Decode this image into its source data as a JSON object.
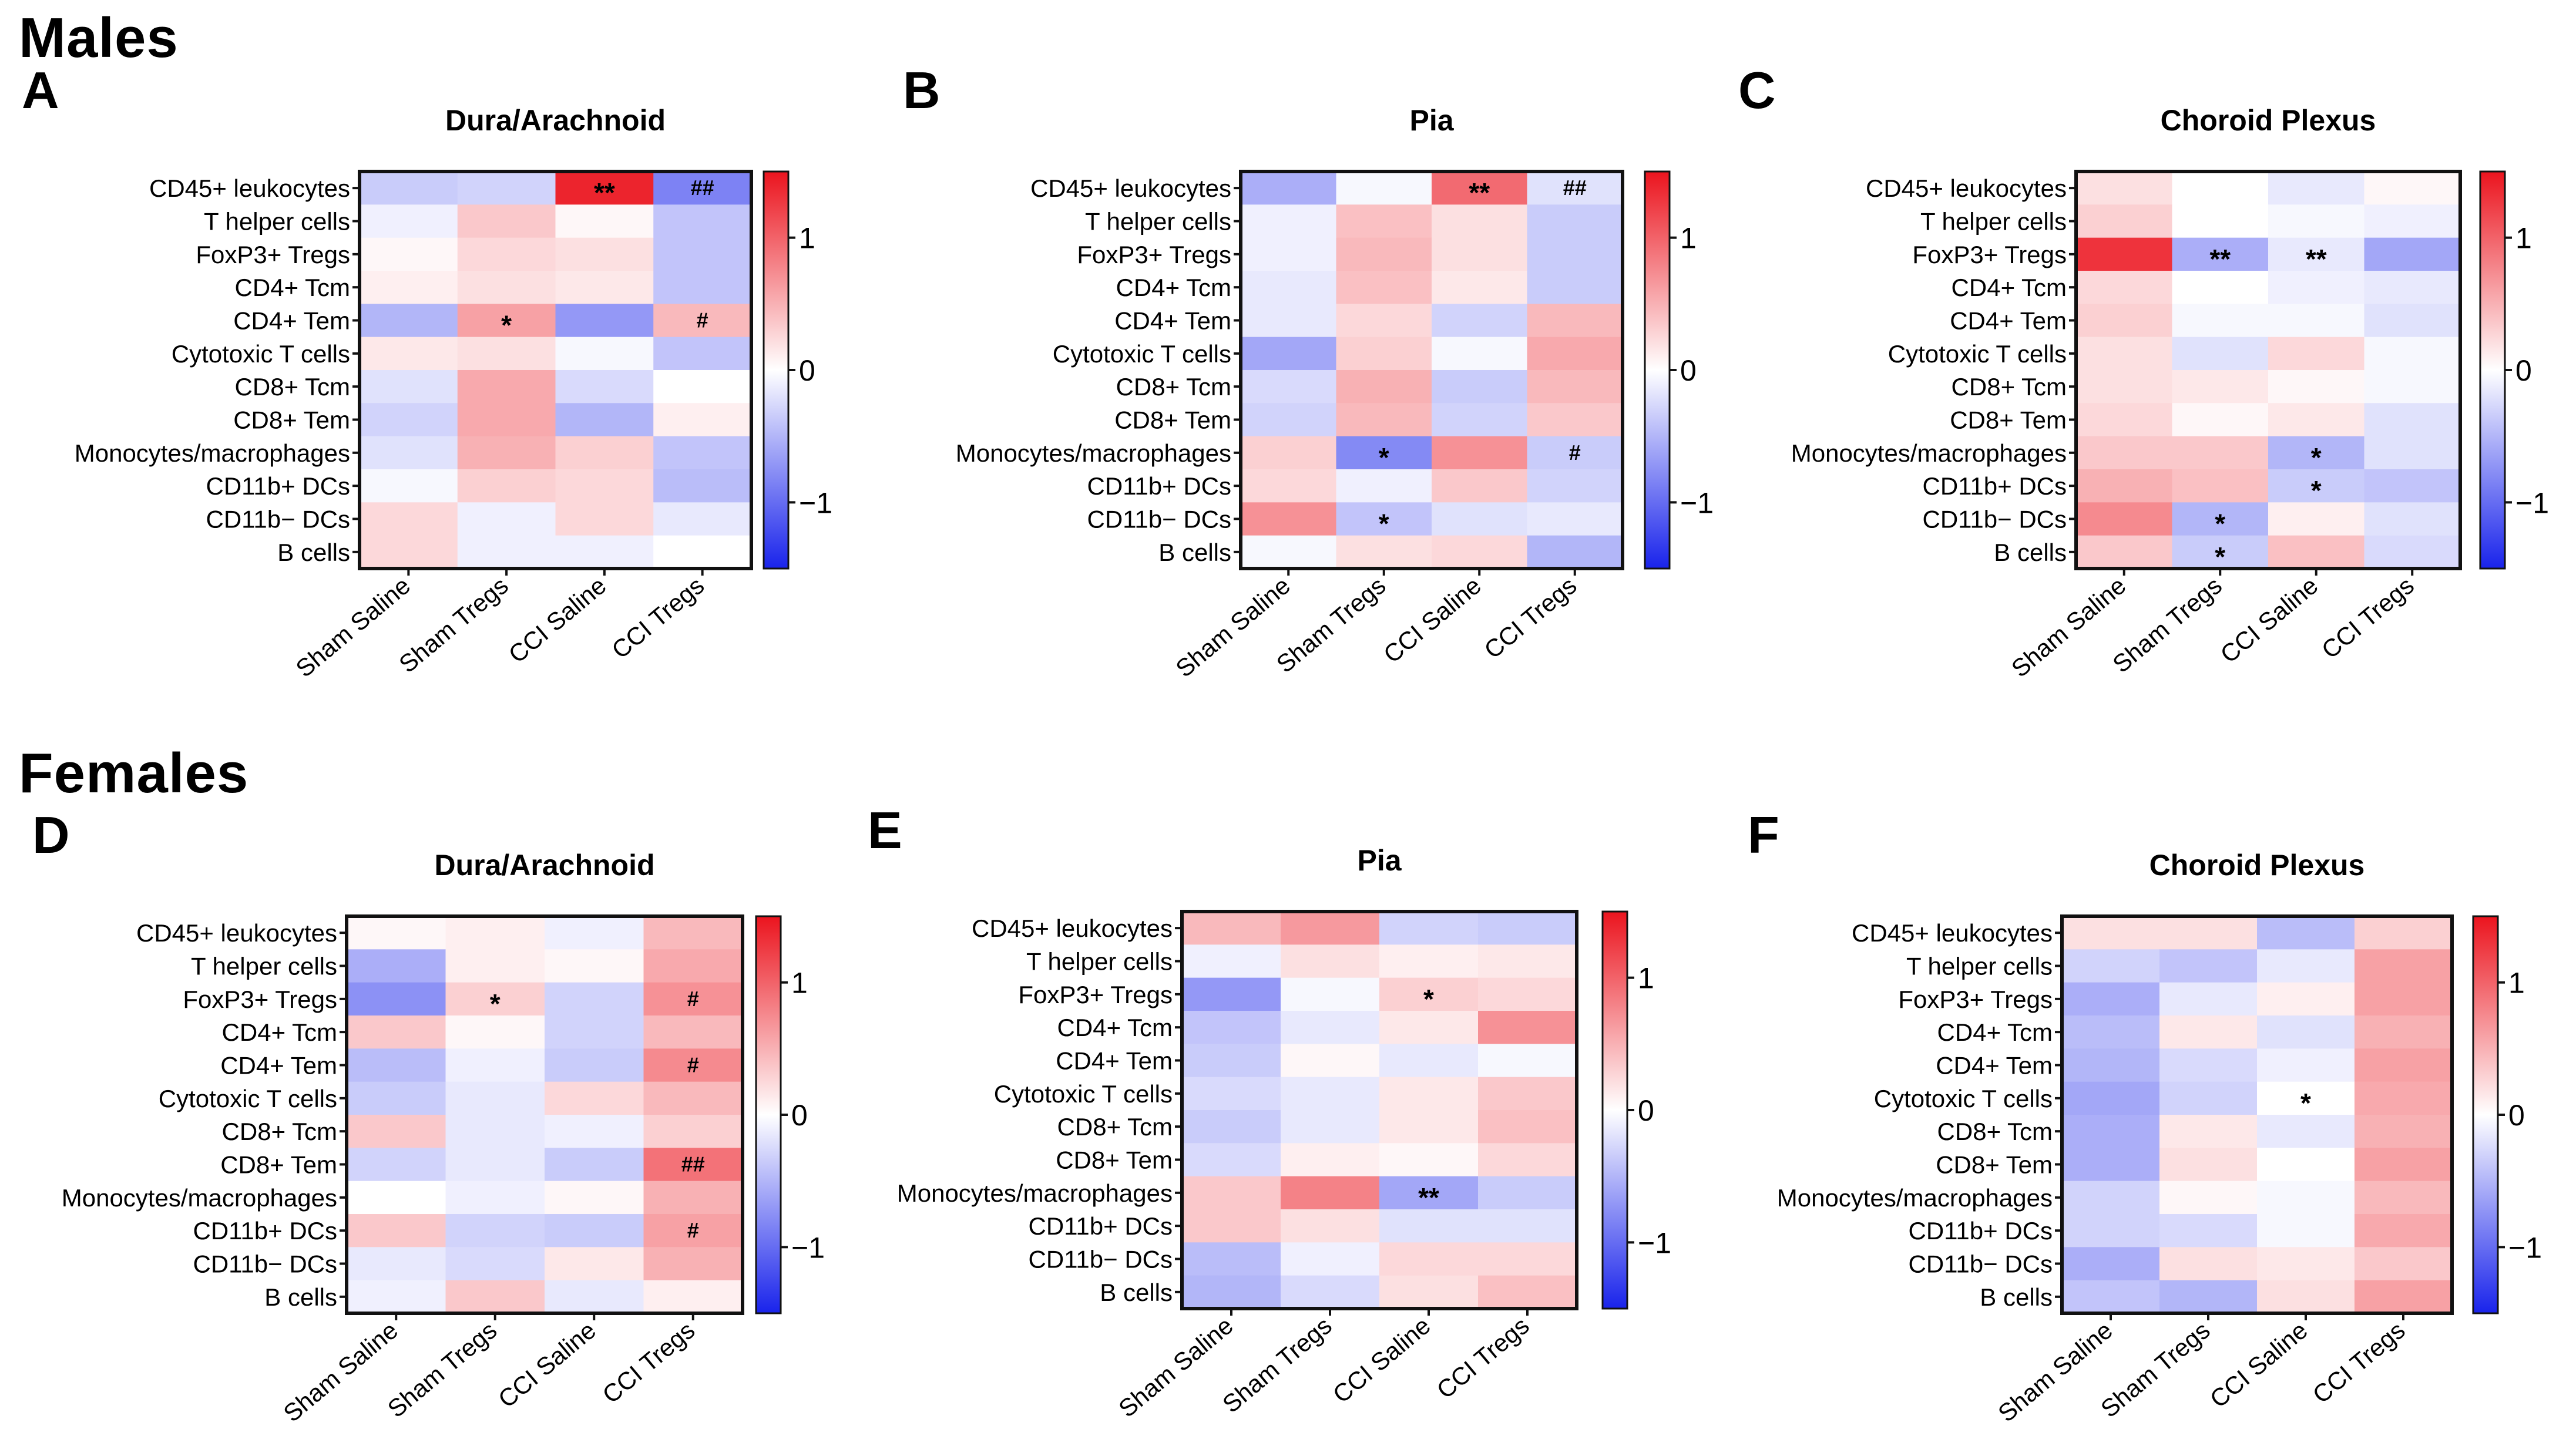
{
  "figure": {
    "males_title": "Males",
    "females_title": "Females"
  },
  "chart_data": [
    {
      "type": "heatmap",
      "panel": "A",
      "title": "Dura/Arachnoid",
      "rows": [
        "CD45+ leukocytes",
        "T helper cells",
        "FoxP3+ Tregs",
        "CD4+ Tcm",
        "CD4+ Tem",
        "Cytotoxic T cells",
        "CD8+ Tcm",
        "CD8+ Tem",
        "Monocytes/macrophages",
        "CD11b+ DCs",
        "CD11b− DCs",
        "B cells"
      ],
      "columns": [
        "Sham Saline",
        "Sham Tregs",
        "CCI Saline",
        "CCI Tregs"
      ],
      "values": [
        [
          -0.35,
          -0.3,
          1.4,
          -0.85
        ],
        [
          -0.1,
          0.35,
          0.05,
          -0.4
        ],
        [
          0.05,
          0.25,
          0.2,
          -0.4
        ],
        [
          0.1,
          0.2,
          0.15,
          -0.4
        ],
        [
          -0.5,
          0.6,
          -0.7,
          0.45
        ],
        [
          0.15,
          0.2,
          -0.05,
          -0.4
        ],
        [
          -0.2,
          0.55,
          -0.25,
          0.0
        ],
        [
          -0.3,
          0.55,
          -0.5,
          0.1
        ],
        [
          -0.2,
          0.5,
          0.3,
          -0.4
        ],
        [
          -0.05,
          0.3,
          0.25,
          -0.45
        ],
        [
          0.25,
          -0.1,
          0.25,
          -0.15
        ],
        [
          0.25,
          -0.1,
          -0.1,
          0.0
        ]
      ],
      "annotations": [
        [
          "",
          "",
          "**",
          "##"
        ],
        [
          "",
          "",
          "",
          ""
        ],
        [
          "",
          "",
          "",
          ""
        ],
        [
          "",
          "",
          "",
          ""
        ],
        [
          "",
          "*",
          "",
          "#"
        ],
        [
          "",
          "",
          "",
          ""
        ],
        [
          "",
          "",
          "",
          ""
        ],
        [
          "",
          "",
          "",
          ""
        ],
        [
          "",
          "",
          "",
          ""
        ],
        [
          "",
          "",
          "",
          ""
        ],
        [
          "",
          "",
          "",
          ""
        ],
        [
          "",
          "",
          "",
          ""
        ]
      ],
      "colorbar": {
        "min": -1.5,
        "max": 1.5,
        "ticks": [
          1,
          0,
          -1
        ],
        "tick_labels": [
          "1",
          "0",
          "−1"
        ]
      }
    },
    {
      "type": "heatmap",
      "panel": "B",
      "title": "Pia",
      "rows": [
        "CD45+ leukocytes",
        "T helper cells",
        "FoxP3+ Tregs",
        "CD4+ Tcm",
        "CD4+ Tem",
        "Cytotoxic T cells",
        "CD8+ Tcm",
        "CD8+ Tem",
        "Monocytes/macrophages",
        "CD11b+ DCs",
        "CD11b− DCs",
        "B cells"
      ],
      "columns": [
        "Sham Saline",
        "Sham Tregs",
        "CCI Saline",
        "CCI Tregs"
      ],
      "values": [
        [
          -0.55,
          -0.05,
          0.95,
          -0.2
        ],
        [
          -0.1,
          0.4,
          0.2,
          -0.35
        ],
        [
          -0.1,
          0.45,
          0.2,
          -0.35
        ],
        [
          -0.15,
          0.4,
          0.15,
          -0.35
        ],
        [
          -0.15,
          0.25,
          -0.3,
          0.45
        ],
        [
          -0.6,
          0.3,
          -0.05,
          0.55
        ],
        [
          -0.25,
          0.5,
          -0.35,
          0.45
        ],
        [
          -0.3,
          0.45,
          -0.3,
          0.35
        ],
        [
          0.3,
          -0.8,
          0.7,
          -0.35
        ],
        [
          0.25,
          -0.1,
          0.35,
          -0.3
        ],
        [
          0.7,
          -0.4,
          -0.2,
          -0.15
        ],
        [
          -0.05,
          0.2,
          0.25,
          -0.5
        ]
      ],
      "annotations": [
        [
          "",
          "",
          "**",
          "##"
        ],
        [
          "",
          "",
          "",
          ""
        ],
        [
          "",
          "",
          "",
          ""
        ],
        [
          "",
          "",
          "",
          ""
        ],
        [
          "",
          "",
          "",
          ""
        ],
        [
          "",
          "",
          "",
          ""
        ],
        [
          "",
          "",
          "",
          ""
        ],
        [
          "",
          "",
          "",
          ""
        ],
        [
          "",
          "*",
          "",
          "#"
        ],
        [
          "",
          "",
          "",
          ""
        ],
        [
          "",
          "*",
          "",
          ""
        ],
        [
          "",
          "",
          "",
          ""
        ]
      ],
      "colorbar": {
        "min": -1.5,
        "max": 1.5,
        "ticks": [
          1,
          0,
          -1
        ],
        "tick_labels": [
          "1",
          "0",
          "−1"
        ]
      }
    },
    {
      "type": "heatmap",
      "panel": "C",
      "title": "Choroid Plexus",
      "rows": [
        "CD45+ leukocytes",
        "T helper cells",
        "FoxP3+ Tregs",
        "CD4+ Tcm",
        "CD4+ Tem",
        "Cytotoxic T cells",
        "CD8+ Tcm",
        "CD8+ Tem",
        "Monocytes/macrophages",
        "CD11b+ DCs",
        "CD11b− DCs",
        "B cells"
      ],
      "columns": [
        "Sham Saline",
        "Sham Tregs",
        "CCI Saline",
        "CCI Tregs"
      ],
      "values": [
        [
          0.2,
          0.0,
          -0.15,
          0.05
        ],
        [
          0.3,
          0.0,
          -0.05,
          -0.1
        ],
        [
          1.3,
          -0.55,
          -0.15,
          -0.6
        ],
        [
          0.25,
          0.0,
          -0.1,
          -0.15
        ],
        [
          0.3,
          -0.05,
          -0.05,
          -0.2
        ],
        [
          0.2,
          -0.2,
          0.25,
          -0.05
        ],
        [
          0.2,
          0.15,
          0.05,
          -0.05
        ],
        [
          0.25,
          0.05,
          0.15,
          -0.2
        ],
        [
          0.35,
          0.35,
          -0.5,
          -0.2
        ],
        [
          0.5,
          0.4,
          -0.35,
          -0.4
        ],
        [
          0.75,
          -0.5,
          0.1,
          -0.2
        ],
        [
          0.35,
          -0.35,
          0.4,
          -0.25
        ]
      ],
      "annotations": [
        [
          "",
          "",
          "",
          ""
        ],
        [
          "",
          "",
          "",
          ""
        ],
        [
          "",
          "**",
          "**",
          ""
        ],
        [
          "",
          "",
          "",
          ""
        ],
        [
          "",
          "",
          "",
          ""
        ],
        [
          "",
          "",
          "",
          ""
        ],
        [
          "",
          "",
          "",
          ""
        ],
        [
          "",
          "",
          "",
          ""
        ],
        [
          "",
          "",
          "*",
          ""
        ],
        [
          "",
          "",
          "*",
          ""
        ],
        [
          "",
          "*",
          "",
          ""
        ],
        [
          "",
          "*",
          "",
          ""
        ]
      ],
      "colorbar": {
        "min": -1.5,
        "max": 1.5,
        "ticks": [
          1,
          0,
          -1
        ],
        "tick_labels": [
          "1",
          "0",
          "−1"
        ]
      }
    },
    {
      "type": "heatmap",
      "panel": "D",
      "title": "Dura/Arachnoid",
      "rows": [
        "CD45+ leukocytes",
        "T helper cells",
        "FoxP3+ Tregs",
        "CD4+ Tcm",
        "CD4+ Tem",
        "Cytotoxic T cells",
        "CD8+ Tcm",
        "CD8+ Tem",
        "Monocytes/macrophages",
        "CD11b+ DCs",
        "CD11b− DCs",
        "B cells"
      ],
      "columns": [
        "Sham Saline",
        "Sham Tregs",
        "CCI Saline",
        "CCI Tregs"
      ],
      "values": [
        [
          0.05,
          0.1,
          -0.1,
          0.45
        ],
        [
          -0.55,
          0.1,
          0.05,
          0.55
        ],
        [
          -0.75,
          0.3,
          -0.3,
          0.7
        ],
        [
          0.35,
          0.05,
          -0.3,
          0.45
        ],
        [
          -0.45,
          -0.1,
          -0.35,
          0.75
        ],
        [
          -0.35,
          -0.15,
          0.25,
          0.45
        ],
        [
          0.35,
          -0.15,
          -0.1,
          0.3
        ],
        [
          -0.3,
          -0.15,
          -0.35,
          0.9
        ],
        [
          0.0,
          -0.1,
          0.05,
          0.5
        ],
        [
          0.35,
          -0.3,
          -0.35,
          0.6
        ],
        [
          -0.15,
          -0.25,
          0.15,
          0.5
        ],
        [
          -0.1,
          0.35,
          -0.15,
          0.1
        ]
      ],
      "annotations": [
        [
          "",
          "",
          "",
          ""
        ],
        [
          "",
          "",
          "",
          ""
        ],
        [
          "",
          "*",
          "",
          "#"
        ],
        [
          "",
          "",
          "",
          ""
        ],
        [
          "",
          "",
          "",
          "#"
        ],
        [
          "",
          "",
          "",
          ""
        ],
        [
          "",
          "",
          "",
          ""
        ],
        [
          "",
          "",
          "",
          "##"
        ],
        [
          "",
          "",
          "",
          ""
        ],
        [
          "",
          "",
          "",
          "#"
        ],
        [
          "",
          "",
          "",
          ""
        ],
        [
          "",
          "",
          "",
          ""
        ]
      ],
      "colorbar": {
        "min": -1.5,
        "max": 1.5,
        "ticks": [
          1,
          0,
          -1
        ],
        "tick_labels": [
          "1",
          "0",
          "−1"
        ]
      }
    },
    {
      "type": "heatmap",
      "panel": "E",
      "title": "Pia",
      "rows": [
        "CD45+ leukocytes",
        "T helper cells",
        "FoxP3+ Tregs",
        "CD4+ Tcm",
        "CD4+ Tem",
        "Cytotoxic T cells",
        "CD8+ Tcm",
        "CD8+ Tem",
        "Monocytes/macrophages",
        "CD11b+ DCs",
        "CD11b− DCs",
        "B cells"
      ],
      "columns": [
        "Sham Saline",
        "Sham Tregs",
        "CCI Saline",
        "CCI Tregs"
      ],
      "values": [
        [
          0.45,
          0.65,
          -0.3,
          -0.35
        ],
        [
          -0.1,
          0.2,
          0.1,
          0.15
        ],
        [
          -0.7,
          -0.05,
          0.3,
          0.25
        ],
        [
          -0.4,
          -0.15,
          0.15,
          0.7
        ],
        [
          -0.35,
          0.05,
          -0.15,
          -0.05
        ],
        [
          -0.25,
          -0.15,
          0.15,
          0.35
        ],
        [
          -0.35,
          -0.15,
          0.15,
          0.4
        ],
        [
          -0.25,
          0.1,
          0.05,
          0.25
        ],
        [
          0.35,
          0.8,
          -0.6,
          -0.35
        ],
        [
          0.35,
          0.2,
          -0.2,
          -0.2
        ],
        [
          -0.45,
          -0.1,
          0.25,
          0.25
        ],
        [
          -0.5,
          -0.25,
          0.2,
          0.4
        ]
      ],
      "annotations": [
        [
          "",
          "",
          "",
          ""
        ],
        [
          "",
          "",
          "",
          ""
        ],
        [
          "",
          "",
          "*",
          ""
        ],
        [
          "",
          "",
          "",
          ""
        ],
        [
          "",
          "",
          "",
          ""
        ],
        [
          "",
          "",
          "",
          ""
        ],
        [
          "",
          "",
          "",
          ""
        ],
        [
          "",
          "",
          "",
          ""
        ],
        [
          "",
          "",
          "**",
          ""
        ],
        [
          "",
          "",
          "",
          ""
        ],
        [
          "",
          "",
          "",
          ""
        ],
        [
          "",
          "",
          "",
          ""
        ]
      ],
      "colorbar": {
        "min": -1.5,
        "max": 1.5,
        "ticks": [
          1,
          0,
          -1
        ],
        "tick_labels": [
          "1",
          "0",
          "−1"
        ]
      }
    },
    {
      "type": "heatmap",
      "panel": "F",
      "title": "Choroid Plexus",
      "rows": [
        "CD45+ leukocytes",
        "T helper cells",
        "FoxP3+ Tregs",
        "CD4+ Tcm",
        "CD4+ Tem",
        "Cytotoxic T cells",
        "CD8+ Tcm",
        "CD8+ Tem",
        "Monocytes/macrophages",
        "CD11b+ DCs",
        "CD11b− DCs",
        "B cells"
      ],
      "columns": [
        "Sham Saline",
        "Sham Tregs",
        "CCI Saline",
        "CCI Tregs"
      ],
      "values": [
        [
          0.2,
          0.2,
          -0.45,
          0.3
        ],
        [
          -0.3,
          -0.4,
          -0.15,
          0.6
        ],
        [
          -0.55,
          -0.15,
          0.1,
          0.6
        ],
        [
          -0.45,
          0.15,
          -0.2,
          0.5
        ],
        [
          -0.5,
          -0.25,
          -0.1,
          0.6
        ],
        [
          -0.6,
          -0.3,
          0.0,
          0.55
        ],
        [
          -0.55,
          0.15,
          -0.15,
          0.5
        ],
        [
          -0.55,
          0.2,
          0.0,
          0.6
        ],
        [
          -0.3,
          0.05,
          -0.05,
          0.45
        ],
        [
          -0.3,
          -0.25,
          -0.05,
          0.55
        ],
        [
          -0.55,
          0.2,
          0.15,
          0.35
        ],
        [
          -0.4,
          -0.5,
          0.2,
          0.6
        ]
      ],
      "annotations": [
        [
          "",
          "",
          "",
          ""
        ],
        [
          "",
          "",
          "",
          ""
        ],
        [
          "",
          "",
          "",
          ""
        ],
        [
          "",
          "",
          "",
          ""
        ],
        [
          "",
          "",
          "",
          ""
        ],
        [
          "",
          "",
          "*",
          ""
        ],
        [
          "",
          "",
          "",
          ""
        ],
        [
          "",
          "",
          "",
          ""
        ],
        [
          "",
          "",
          "",
          ""
        ],
        [
          "",
          "",
          "",
          ""
        ],
        [
          "",
          "",
          "",
          ""
        ],
        [
          "",
          "",
          "",
          ""
        ]
      ],
      "colorbar": {
        "min": -1.5,
        "max": 1.5,
        "ticks": [
          1,
          0,
          -1
        ],
        "tick_labels": [
          "1",
          "0",
          "−1"
        ]
      }
    }
  ]
}
